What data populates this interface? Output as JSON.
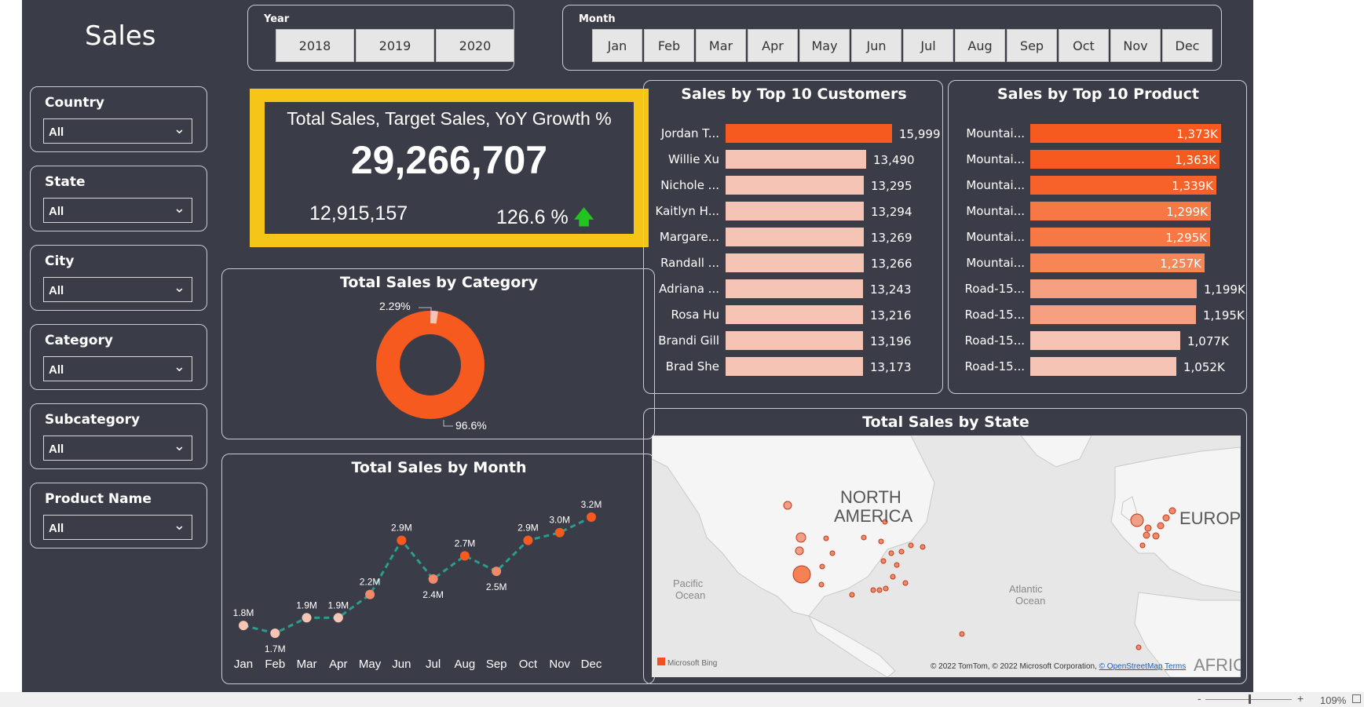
{
  "page_title": "Sales",
  "year_slicer": {
    "label": "Year",
    "options": [
      "2018",
      "2019",
      "2020"
    ]
  },
  "month_slicer": {
    "label": "Month",
    "options": [
      "Jan",
      "Feb",
      "Mar",
      "Apr",
      "May",
      "Jun",
      "Jul",
      "Aug",
      "Sep",
      "Oct",
      "Nov",
      "Dec"
    ]
  },
  "filters": [
    {
      "label": "Country",
      "value": "All"
    },
    {
      "label": "State",
      "value": "All"
    },
    {
      "label": "City",
      "value": "All"
    },
    {
      "label": "Category",
      "value": "All"
    },
    {
      "label": "Subcategory",
      "value": "All"
    },
    {
      "label": "Product Name",
      "value": "All"
    }
  ],
  "kpi": {
    "title": "Total Sales, Target Sales, YoY Growth %",
    "total_sales": "29,266,707",
    "target_sales": "12,915,157",
    "yoy_growth": "126.6 %",
    "arrow": "🡅"
  },
  "category": {
    "title": "Total Sales by Category",
    "label_small": "2.29%",
    "label_large": "96.6%"
  },
  "top_customers": {
    "title": "Sales by Top 10 Customers",
    "rows": [
      {
        "name": "Jordan T...",
        "value": 15999,
        "label": "15,999"
      },
      {
        "name": "Willie Xu",
        "value": 13490,
        "label": "13,490"
      },
      {
        "name": "Nichole ...",
        "value": 13295,
        "label": "13,295"
      },
      {
        "name": "Kaitlyn H...",
        "value": 13294,
        "label": "13,294"
      },
      {
        "name": "Margare...",
        "value": 13269,
        "label": "13,269"
      },
      {
        "name": "Randall ...",
        "value": 13266,
        "label": "13,266"
      },
      {
        "name": "Adriana ...",
        "value": 13243,
        "label": "13,243"
      },
      {
        "name": "Rosa Hu",
        "value": 13216,
        "label": "13,216"
      },
      {
        "name": "Brandi Gill",
        "value": 13196,
        "label": "13,196"
      },
      {
        "name": "Brad She",
        "value": 13173,
        "label": "13,173"
      }
    ]
  },
  "top_products": {
    "title": "Sales by Top 10 Product",
    "rows": [
      {
        "name": "Mountai...",
        "value": 1373,
        "label": "1,373K"
      },
      {
        "name": "Mountai...",
        "value": 1363,
        "label": "1,363K"
      },
      {
        "name": "Mountai...",
        "value": 1339,
        "label": "1,339K"
      },
      {
        "name": "Mountai...",
        "value": 1299,
        "label": "1,299K"
      },
      {
        "name": "Mountai...",
        "value": 1295,
        "label": "1,295K"
      },
      {
        "name": "Mountai...",
        "value": 1257,
        "label": "1,257K"
      },
      {
        "name": "Road-15...",
        "value": 1199,
        "label": "1,199K"
      },
      {
        "name": "Road-15...",
        "value": 1195,
        "label": "1,195K"
      },
      {
        "name": "Road-15...",
        "value": 1077,
        "label": "1,077K"
      },
      {
        "name": "Road-15...",
        "value": 1052,
        "label": "1,052K"
      }
    ]
  },
  "state_map": {
    "title": "Total Sales by State",
    "labels": [
      "NORTH",
      "AMERICA",
      "EUROPE",
      "Pacific",
      "Ocean",
      "Atlantic",
      "Ocean",
      "AFRICA"
    ],
    "attribution": "Microsoft Bing",
    "copyright": "© 2022 TomTom, © 2022 Microsoft Corporation,",
    "osm": "© OpenStreetMap",
    "terms": "Terms"
  },
  "status": {
    "zoom": "109%",
    "minus": "-",
    "plus": "+"
  },
  "chart_data": {
    "type": "line",
    "title": "Total Sales by Month",
    "categories": [
      "Jan",
      "Feb",
      "Mar",
      "Apr",
      "May",
      "Jun",
      "Jul",
      "Aug",
      "Sep",
      "Oct",
      "Nov",
      "Dec"
    ],
    "values": [
      1.8,
      1.7,
      1.9,
      1.9,
      2.2,
      2.9,
      2.4,
      2.7,
      2.5,
      2.9,
      3.0,
      3.2
    ],
    "labels": [
      "1.8M",
      "1.7M",
      "1.9M",
      "1.9M",
      "2.2M",
      "2.9M",
      "2.4M",
      "2.7M",
      "2.5M",
      "2.9M",
      "3.0M",
      "3.2M"
    ],
    "unit": "M",
    "line_color": "#2a9d8f",
    "dot_color": "#f08a6a"
  }
}
